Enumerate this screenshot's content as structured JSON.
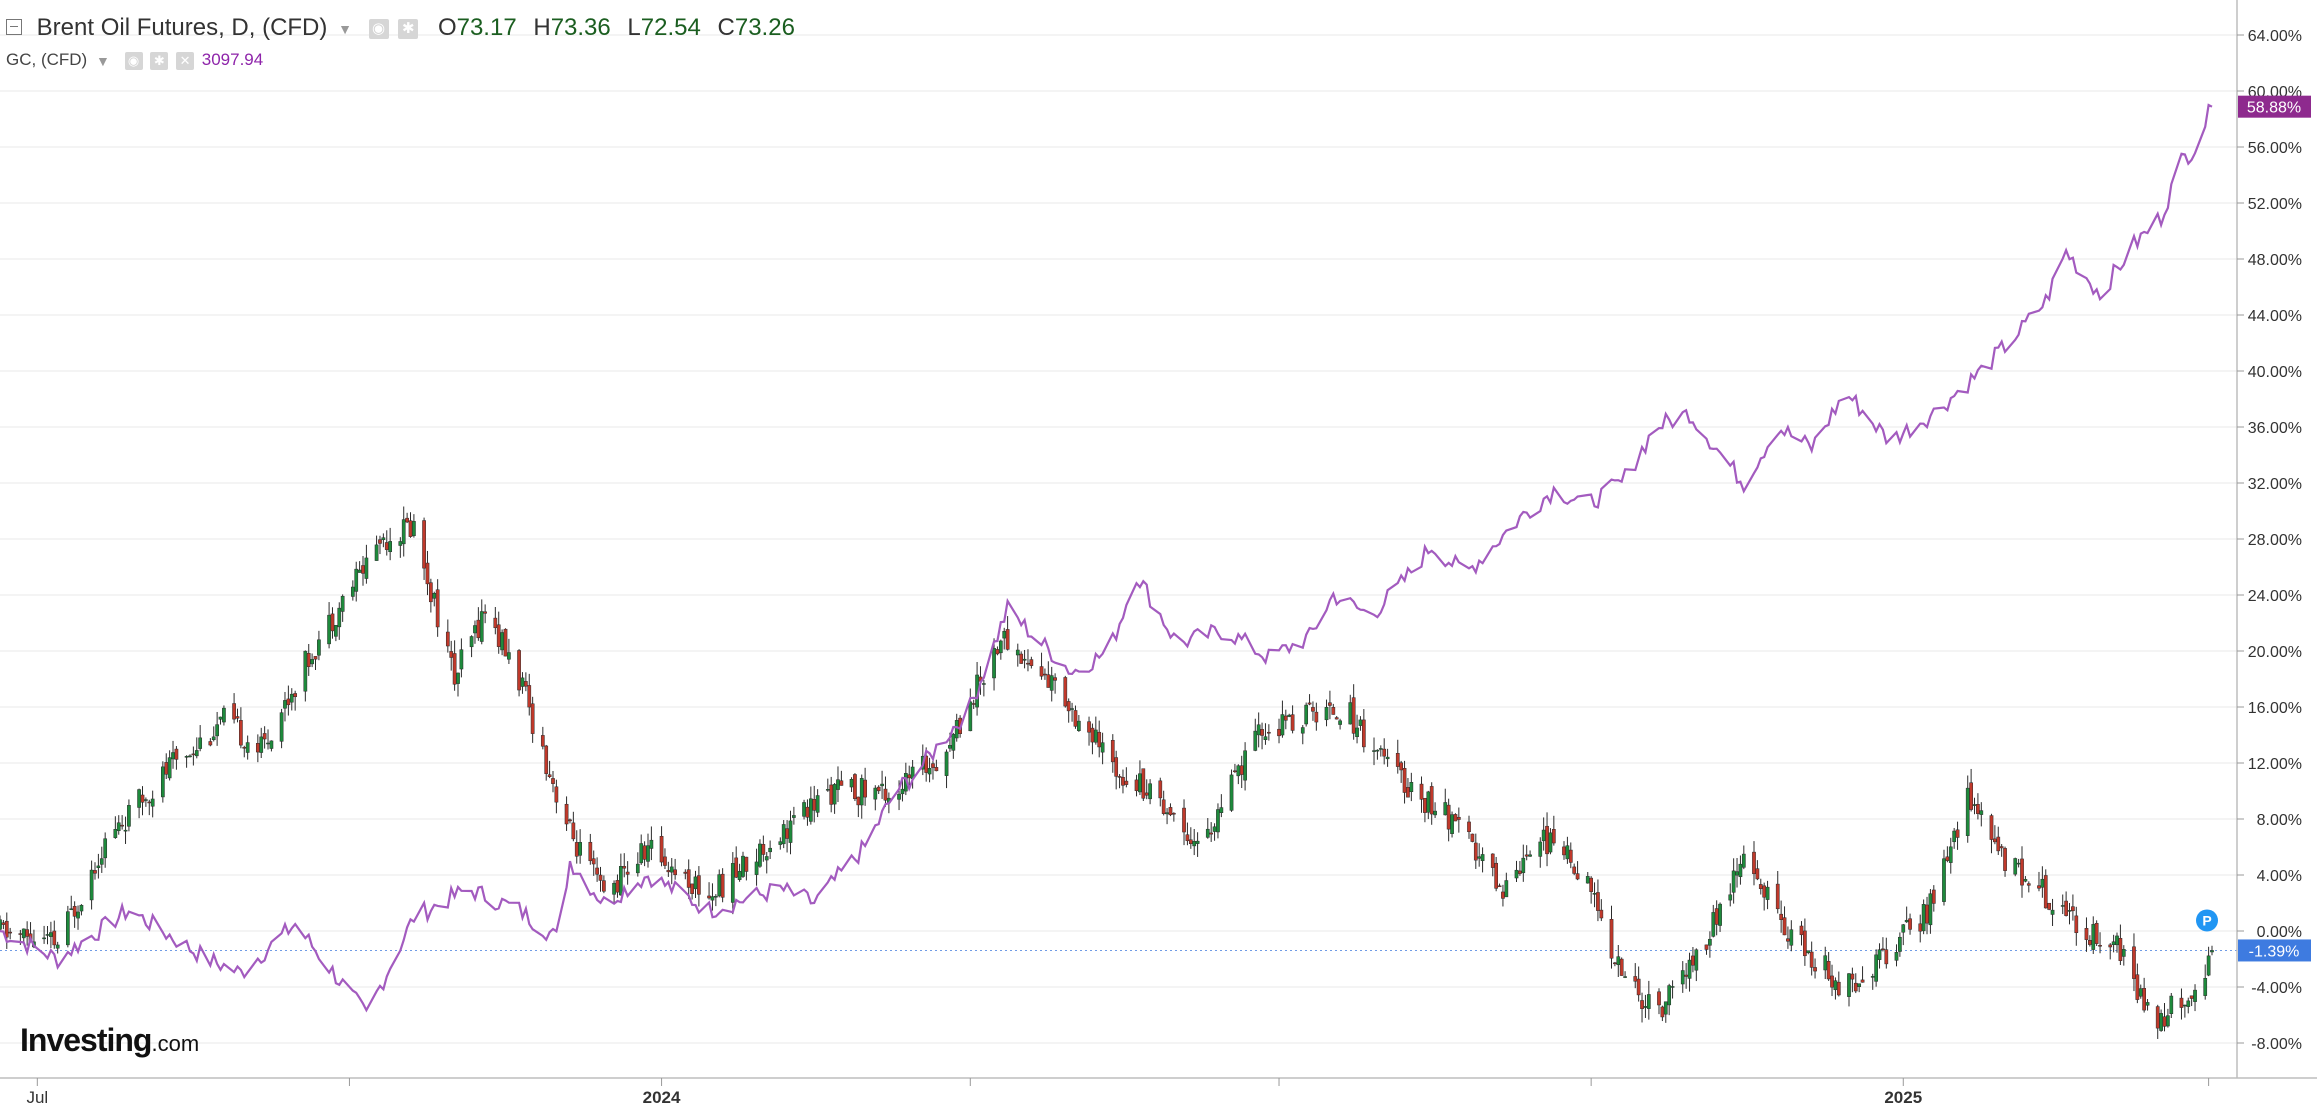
{
  "legend": {
    "main": {
      "symbol": "Brent Oil Futures, D, (CFD)",
      "o_key": "O",
      "o": "73.17",
      "h_key": "H",
      "h": "73.36",
      "l_key": "L",
      "l": "72.54",
      "c_key": "C",
      "c": "73.26"
    },
    "compare": {
      "symbol": "GC, (CFD)",
      "value": "3097.94"
    }
  },
  "brand": {
    "name": "Investing",
    "suffix": ".com"
  },
  "colors": {
    "up": "#1e8a3c",
    "down": "#c0392b",
    "gold_line": "#a35bbf",
    "gold_badge": "#8e2a8e",
    "brent_badge": "#3e7be0",
    "grid": "#e8e8e8"
  },
  "chart_data": {
    "type": "line",
    "y_axis_unit": "%",
    "ylim": [
      -10.5,
      66.5
    ],
    "y_ticks": [
      "64.00%",
      "60.00%",
      "56.00%",
      "52.00%",
      "48.00%",
      "44.00%",
      "40.00%",
      "36.00%",
      "32.00%",
      "28.00%",
      "24.00%",
      "20.00%",
      "16.00%",
      "12.00%",
      "8.00%",
      "4.00%",
      "0.00%",
      "-4.00%",
      "-8.00%"
    ],
    "x_ticks": [
      "Jul",
      "2024",
      "2025"
    ],
    "x_start": "2023-06-20",
    "x_end": "2025-04-02",
    "last_values": {
      "gold": "58.88%",
      "brent": "-1.39%"
    },
    "series": [
      {
        "name": "GC, (CFD)",
        "style": "line",
        "points": [
          [
            "2023-06-20",
            0.0
          ],
          [
            "2023-07-07",
            -2.0
          ],
          [
            "2023-07-28",
            1.5
          ],
          [
            "2023-08-20",
            -2.0
          ],
          [
            "2023-08-30",
            -3.0
          ],
          [
            "2023-09-15",
            0.5
          ],
          [
            "2023-10-06",
            -6.0
          ],
          [
            "2023-10-20",
            1.0
          ],
          [
            "2023-11-05",
            3.0
          ],
          [
            "2023-11-20",
            1.5
          ],
          [
            "2023-12-01",
            -0.5
          ],
          [
            "2023-12-05",
            5.0
          ],
          [
            "2023-12-15",
            2.0
          ],
          [
            "2023-12-28",
            4.0
          ],
          [
            "2024-01-15",
            1.5
          ],
          [
            "2024-02-05",
            3.0
          ],
          [
            "2024-02-15",
            2.0
          ],
          [
            "2024-03-01",
            6.0
          ],
          [
            "2024-03-10",
            10.0
          ],
          [
            "2024-03-15",
            11.0
          ],
          [
            "2024-04-01",
            16.0
          ],
          [
            "2024-04-12",
            23.0
          ],
          [
            "2024-04-20",
            21.0
          ],
          [
            "2024-05-01",
            18.5
          ],
          [
            "2024-05-12",
            20.0
          ],
          [
            "2024-05-20",
            25.5
          ],
          [
            "2024-06-01",
            20.5
          ],
          [
            "2024-06-15",
            21.5
          ],
          [
            "2024-06-28",
            19.5
          ],
          [
            "2024-07-10",
            21.0
          ],
          [
            "2024-07-17",
            24.0
          ],
          [
            "2024-07-28",
            22.5
          ],
          [
            "2024-08-05",
            24.5
          ],
          [
            "2024-08-15",
            27.5
          ],
          [
            "2024-08-25",
            25.5
          ],
          [
            "2024-09-10",
            29.5
          ],
          [
            "2024-09-20",
            31.5
          ],
          [
            "2024-09-30",
            30.5
          ],
          [
            "2024-10-10",
            32.0
          ],
          [
            "2024-10-20",
            36.0
          ],
          [
            "2024-10-30",
            37.0
          ],
          [
            "2024-11-10",
            33.5
          ],
          [
            "2024-11-15",
            32.0
          ],
          [
            "2024-11-25",
            36.0
          ],
          [
            "2024-12-05",
            34.5
          ],
          [
            "2024-12-15",
            38.5
          ],
          [
            "2024-12-28",
            35.0
          ],
          [
            "2025-01-10",
            37.0
          ],
          [
            "2025-01-24",
            40.0
          ],
          [
            "2025-02-05",
            43.0
          ],
          [
            "2025-02-12",
            45.0
          ],
          [
            "2025-02-18",
            48.5
          ],
          [
            "2025-02-28",
            45.5
          ],
          [
            "2025-03-10",
            49.0
          ],
          [
            "2025-03-18",
            51.0
          ],
          [
            "2025-03-24",
            55.0
          ],
          [
            "2025-03-28",
            56.0
          ],
          [
            "2025-04-02",
            58.88
          ]
        ]
      },
      {
        "name": "Brent Oil Futures, D, (CFD)",
        "style": "candlestick",
        "points": [
          [
            "2023-06-20",
            0.0
          ],
          [
            "2023-07-07",
            -1.0
          ],
          [
            "2023-07-20",
            6.0
          ],
          [
            "2023-08-10",
            12.0
          ],
          [
            "2023-08-25",
            15.0
          ],
          [
            "2023-09-05",
            13.0
          ],
          [
            "2023-09-20",
            20.0
          ],
          [
            "2023-10-05",
            26.0
          ],
          [
            "2023-10-10",
            28.0
          ],
          [
            "2023-10-20",
            29.0
          ],
          [
            "2023-11-01",
            18.0
          ],
          [
            "2023-11-10",
            23.0
          ],
          [
            "2023-11-20",
            18.0
          ],
          [
            "2023-12-05",
            7.0
          ],
          [
            "2023-12-15",
            2.5
          ],
          [
            "2023-12-28",
            6.0
          ],
          [
            "2024-01-15",
            2.5
          ],
          [
            "2024-02-05",
            7.0
          ],
          [
            "2024-02-20",
            10.0
          ],
          [
            "2024-03-10",
            10.0
          ],
          [
            "2024-03-25",
            13.0
          ],
          [
            "2024-04-10",
            21.0
          ],
          [
            "2024-04-28",
            17.0
          ],
          [
            "2024-05-12",
            12.0
          ],
          [
            "2024-05-25",
            10.0
          ],
          [
            "2024-06-08",
            6.0
          ],
          [
            "2024-06-25",
            14.0
          ],
          [
            "2024-07-10",
            15.5
          ],
          [
            "2024-07-20",
            16.0
          ],
          [
            "2024-08-05",
            11.0
          ],
          [
            "2024-08-20",
            8.0
          ],
          [
            "2024-09-05",
            3.0
          ],
          [
            "2024-09-15",
            7.0
          ],
          [
            "2024-09-28",
            4.5
          ],
          [
            "2024-10-10",
            -3.0
          ],
          [
            "2024-10-20",
            -6.0
          ],
          [
            "2024-11-01",
            -2.0
          ],
          [
            "2024-11-15",
            5.0
          ],
          [
            "2024-12-01",
            -1.0
          ],
          [
            "2024-12-15",
            -4.0
          ],
          [
            "2025-01-01",
            -0.5
          ],
          [
            "2025-01-10",
            2.0
          ],
          [
            "2025-01-15",
            6.0
          ],
          [
            "2025-01-20",
            10.0
          ],
          [
            "2025-01-28",
            6.0
          ],
          [
            "2025-02-10",
            3.0
          ],
          [
            "2025-02-25",
            0.0
          ],
          [
            "2025-03-05",
            -1.0
          ],
          [
            "2025-03-15",
            -6.5
          ],
          [
            "2025-03-22",
            -5.5
          ],
          [
            "2025-03-28",
            -4.0
          ],
          [
            "2025-04-02",
            -1.39
          ]
        ]
      }
    ]
  }
}
